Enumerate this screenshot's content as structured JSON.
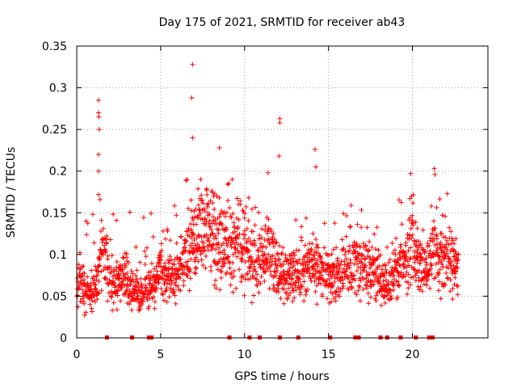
{
  "chart_data": {
    "type": "scatter",
    "title": "Day 175 of 2021, SRMTID for receiver ab43",
    "xlabel": "GPS time / hours",
    "ylabel": "SRMTID / TECUs",
    "xlim": [
      0,
      24.5
    ],
    "ylim": [
      0,
      0.35
    ],
    "xticks": [
      0,
      5,
      10,
      15,
      20
    ],
    "xtick_labels": [
      "0",
      "5",
      "10",
      "15",
      "20"
    ],
    "yticks": [
      0,
      0.05,
      0.1,
      0.15,
      0.2,
      0.25,
      0.3,
      0.35
    ],
    "ytick_labels": [
      "0",
      "0.05",
      "0.1",
      "0.15",
      "0.2",
      "0.25",
      "0.3",
      "0.35"
    ],
    "grid": true,
    "marker": "plus",
    "color": "#ff0000",
    "profile_hours": [
      0,
      0.25,
      0.5,
      0.75,
      1.0,
      1.25,
      1.5,
      1.75,
      2.0,
      2.25,
      2.5,
      2.75,
      3.0,
      3.25,
      3.5,
      3.75,
      4.0,
      4.25,
      4.5,
      4.75,
      5.0,
      5.25,
      5.5,
      5.75,
      6.0,
      6.25,
      6.5,
      6.75,
      7.0,
      7.25,
      7.5,
      7.75,
      8.0,
      8.25,
      8.5,
      8.75,
      9.0,
      9.25,
      9.5,
      9.75,
      10.0,
      10.25,
      10.5,
      10.75,
      11.0,
      11.25,
      11.5,
      11.75,
      12.0,
      12.25,
      12.5,
      12.75,
      13.0,
      13.25,
      13.5,
      13.75,
      14.0,
      14.25,
      14.5,
      14.75,
      15.0,
      15.25,
      15.5,
      15.75,
      16.0,
      16.25,
      16.5,
      16.75,
      17.0,
      17.25,
      17.5,
      17.75,
      18.0,
      18.25,
      18.5,
      18.75,
      19.0,
      19.25,
      19.5,
      19.75,
      20.0,
      20.25,
      20.5,
      20.75,
      21.0,
      21.25,
      21.5,
      21.75,
      22.0,
      22.25,
      22.5,
      22.75
    ],
    "profile_typical_srmtid": [
      0.07,
      0.07,
      0.06,
      0.05,
      0.06,
      0.07,
      0.1,
      0.09,
      0.07,
      0.065,
      0.07,
      0.075,
      0.065,
      0.06,
      0.055,
      0.05,
      0.055,
      0.06,
      0.065,
      0.07,
      0.08,
      0.075,
      0.07,
      0.075,
      0.08,
      0.09,
      0.1,
      0.11,
      0.12,
      0.12,
      0.125,
      0.13,
      0.12,
      0.12,
      0.115,
      0.11,
      0.11,
      0.11,
      0.115,
      0.11,
      0.105,
      0.095,
      0.09,
      0.095,
      0.095,
      0.1,
      0.1,
      0.09,
      0.085,
      0.08,
      0.075,
      0.07,
      0.08,
      0.075,
      0.08,
      0.085,
      0.09,
      0.085,
      0.075,
      0.075,
      0.08,
      0.075,
      0.07,
      0.075,
      0.08,
      0.085,
      0.09,
      0.085,
      0.08,
      0.085,
      0.09,
      0.085,
      0.075,
      0.07,
      0.065,
      0.07,
      0.075,
      0.08,
      0.09,
      0.105,
      0.12,
      0.1,
      0.085,
      0.08,
      0.09,
      0.11,
      0.1,
      0.095,
      0.1,
      0.095,
      0.09,
      0.085
    ],
    "outliers": [
      {
        "x": 1.3,
        "y": 0.285
      },
      {
        "x": 1.3,
        "y": 0.27
      },
      {
        "x": 1.32,
        "y": 0.265
      },
      {
        "x": 1.35,
        "y": 0.25
      },
      {
        "x": 1.3,
        "y": 0.22
      },
      {
        "x": 1.3,
        "y": 0.2
      },
      {
        "x": 1.3,
        "y": 0.172
      },
      {
        "x": 6.9,
        "y": 0.328
      },
      {
        "x": 6.85,
        "y": 0.288
      },
      {
        "x": 6.9,
        "y": 0.24
      },
      {
        "x": 8.5,
        "y": 0.228
      },
      {
        "x": 12.1,
        "y": 0.263
      },
      {
        "x": 12.1,
        "y": 0.258
      },
      {
        "x": 12.05,
        "y": 0.218
      },
      {
        "x": 11.4,
        "y": 0.198
      },
      {
        "x": 14.2,
        "y": 0.226
      },
      {
        "x": 14.25,
        "y": 0.205
      },
      {
        "x": 19.9,
        "y": 0.197
      },
      {
        "x": 21.3,
        "y": 0.203
      },
      {
        "x": 21.35,
        "y": 0.196
      }
    ],
    "zero_markers_hours": [
      1.8,
      3.3,
      4.3,
      4.45,
      9.1,
      10.3,
      10.9,
      12.1,
      13.2,
      15.1,
      16.6,
      16.7,
      16.8,
      18.1,
      18.5,
      19.3,
      20.2,
      21.0,
      21.1,
      21.2
    ]
  }
}
